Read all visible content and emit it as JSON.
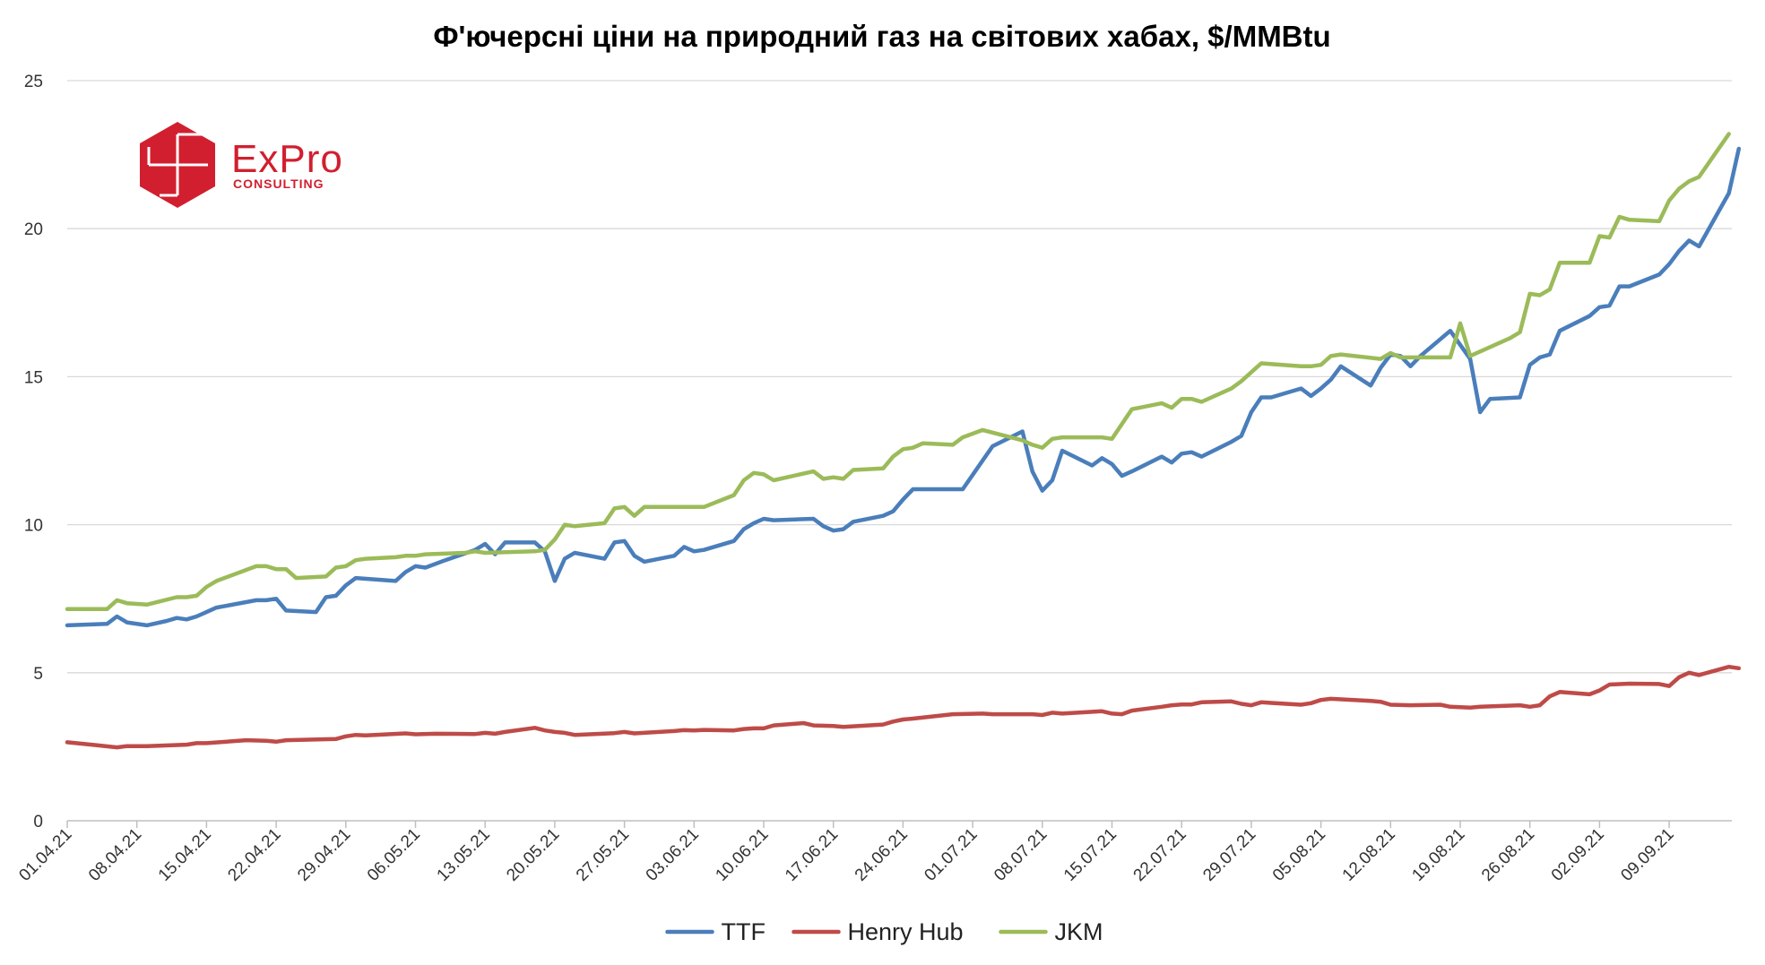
{
  "chart_data": {
    "type": "line",
    "title": "Ф'ючерсні ціни на природний газ на світових хабах, $/MMBtu",
    "ylim": [
      0,
      25
    ],
    "yticks": [
      0,
      5,
      10,
      15,
      20,
      25
    ],
    "x_tick_labels": [
      "01.04.21",
      "08.04.21",
      "15.04.21",
      "22.04.21",
      "29.04.21",
      "06.05.21",
      "13.05.21",
      "20.05.21",
      "27.05.21",
      "03.06.21",
      "10.06.21",
      "17.06.21",
      "24.06.21",
      "01.07.21",
      "08.07.21",
      "15.07.21",
      "22.07.21",
      "29.07.21",
      "05.08.21",
      "12.08.21",
      "19.08.21",
      "26.08.21",
      "02.09.21",
      "09.09.21"
    ],
    "x_tick_days": [
      0,
      7,
      14,
      21,
      28,
      35,
      42,
      49,
      56,
      63,
      70,
      77,
      84,
      91,
      98,
      105,
      112,
      119,
      126,
      133,
      140,
      147,
      154,
      161
    ],
    "grid": "horizontal",
    "legend_position": "bottom",
    "series": [
      {
        "name": "TTF",
        "color": "#4a7ebb",
        "points": [
          [
            0,
            6.6
          ],
          [
            4,
            6.65
          ],
          [
            5,
            6.9
          ],
          [
            6,
            6.7
          ],
          [
            8,
            6.6
          ],
          [
            10,
            6.75
          ],
          [
            11,
            6.85
          ],
          [
            12,
            6.8
          ],
          [
            13,
            6.9
          ],
          [
            14,
            7.05
          ],
          [
            15,
            7.2
          ],
          [
            19,
            7.45
          ],
          [
            20,
            7.45
          ],
          [
            21,
            7.5
          ],
          [
            22,
            7.1
          ],
          [
            25,
            7.05
          ],
          [
            26,
            7.55
          ],
          [
            27,
            7.6
          ],
          [
            28,
            7.95
          ],
          [
            29,
            8.2
          ],
          [
            33,
            8.1
          ],
          [
            34,
            8.4
          ],
          [
            35,
            8.6
          ],
          [
            36,
            8.55
          ],
          [
            38,
            8.8
          ],
          [
            41,
            9.15
          ],
          [
            42,
            9.35
          ],
          [
            43,
            9.0
          ],
          [
            44,
            9.4
          ],
          [
            47,
            9.4
          ],
          [
            48,
            9.1
          ],
          [
            49,
            8.1
          ],
          [
            50,
            8.85
          ],
          [
            51,
            9.05
          ],
          [
            54,
            8.85
          ],
          [
            55,
            9.4
          ],
          [
            56,
            9.45
          ],
          [
            57,
            8.95
          ],
          [
            58,
            8.75
          ],
          [
            61,
            8.95
          ],
          [
            62,
            9.25
          ],
          [
            63,
            9.1
          ],
          [
            64,
            9.15
          ],
          [
            67,
            9.45
          ],
          [
            68,
            9.85
          ],
          [
            69,
            10.05
          ],
          [
            70,
            10.2
          ],
          [
            71,
            10.15
          ],
          [
            75,
            10.2
          ],
          [
            76,
            9.95
          ],
          [
            77,
            9.8
          ],
          [
            78,
            9.85
          ],
          [
            79,
            10.1
          ],
          [
            82,
            10.3
          ],
          [
            83,
            10.45
          ],
          [
            84,
            10.85
          ],
          [
            85,
            11.2
          ],
          [
            90,
            11.2
          ],
          [
            93,
            12.65
          ],
          [
            96,
            13.15
          ],
          [
            97,
            11.8
          ],
          [
            98,
            11.15
          ],
          [
            99,
            11.5
          ],
          [
            100,
            12.5
          ],
          [
            103,
            12.0
          ],
          [
            104,
            12.25
          ],
          [
            105,
            12.05
          ],
          [
            106,
            11.65
          ],
          [
            107,
            11.8
          ],
          [
            110,
            12.3
          ],
          [
            111,
            12.1
          ],
          [
            112,
            12.4
          ],
          [
            113,
            12.45
          ],
          [
            114,
            12.3
          ],
          [
            117,
            12.8
          ],
          [
            118,
            13.0
          ],
          [
            119,
            13.8
          ],
          [
            120,
            14.3
          ],
          [
            121,
            14.3
          ],
          [
            124,
            14.6
          ],
          [
            125,
            14.35
          ],
          [
            126,
            14.6
          ],
          [
            127,
            14.9
          ],
          [
            128,
            15.35
          ],
          [
            131,
            14.7
          ],
          [
            132,
            15.3
          ],
          [
            133,
            15.75
          ],
          [
            134,
            15.7
          ],
          [
            135,
            15.35
          ],
          [
            136,
            15.7
          ],
          [
            139,
            16.55
          ],
          [
            141,
            15.6
          ],
          [
            142,
            13.8
          ],
          [
            143,
            14.25
          ],
          [
            146,
            14.3
          ],
          [
            147,
            15.4
          ],
          [
            148,
            15.65
          ],
          [
            149,
            15.75
          ],
          [
            150,
            16.55
          ],
          [
            153,
            17.05
          ],
          [
            154,
            17.35
          ],
          [
            155,
            17.4
          ],
          [
            156,
            18.05
          ],
          [
            157,
            18.05
          ],
          [
            160,
            18.45
          ],
          [
            161,
            18.8
          ],
          [
            162,
            19.25
          ],
          [
            163,
            19.6
          ],
          [
            164,
            19.4
          ],
          [
            167,
            21.2
          ],
          [
            168,
            22.7
          ]
        ]
      },
      {
        "name": "Henry Hub",
        "color": "#be4b48",
        "points": [
          [
            0,
            2.65
          ],
          [
            3,
            2.55
          ],
          [
            5,
            2.48
          ],
          [
            6,
            2.52
          ],
          [
            8,
            2.52
          ],
          [
            12,
            2.57
          ],
          [
            13,
            2.62
          ],
          [
            14,
            2.62
          ],
          [
            18,
            2.72
          ],
          [
            20,
            2.7
          ],
          [
            21,
            2.67
          ],
          [
            22,
            2.72
          ],
          [
            27,
            2.76
          ],
          [
            28,
            2.85
          ],
          [
            29,
            2.9
          ],
          [
            30,
            2.88
          ],
          [
            34,
            2.95
          ],
          [
            35,
            2.92
          ],
          [
            37,
            2.94
          ],
          [
            41,
            2.93
          ],
          [
            42,
            2.97
          ],
          [
            43,
            2.94
          ],
          [
            44,
            3.0
          ],
          [
            47,
            3.14
          ],
          [
            48,
            3.05
          ],
          [
            49,
            3.0
          ],
          [
            50,
            2.97
          ],
          [
            51,
            2.9
          ],
          [
            55,
            2.96
          ],
          [
            56,
            3.0
          ],
          [
            57,
            2.95
          ],
          [
            61,
            3.03
          ],
          [
            62,
            3.06
          ],
          [
            63,
            3.05
          ],
          [
            64,
            3.07
          ],
          [
            67,
            3.05
          ],
          [
            68,
            3.1
          ],
          [
            69,
            3.12
          ],
          [
            70,
            3.12
          ],
          [
            71,
            3.22
          ],
          [
            74,
            3.3
          ],
          [
            75,
            3.22
          ],
          [
            77,
            3.2
          ],
          [
            78,
            3.17
          ],
          [
            82,
            3.25
          ],
          [
            83,
            3.35
          ],
          [
            84,
            3.42
          ],
          [
            85,
            3.45
          ],
          [
            89,
            3.6
          ],
          [
            92,
            3.62
          ],
          [
            93,
            3.6
          ],
          [
            97,
            3.6
          ],
          [
            98,
            3.57
          ],
          [
            99,
            3.65
          ],
          [
            100,
            3.62
          ],
          [
            104,
            3.7
          ],
          [
            105,
            3.62
          ],
          [
            106,
            3.6
          ],
          [
            107,
            3.72
          ],
          [
            110,
            3.85
          ],
          [
            111,
            3.9
          ],
          [
            112,
            3.93
          ],
          [
            113,
            3.93
          ],
          [
            114,
            4.0
          ],
          [
            117,
            4.03
          ],
          [
            118,
            3.95
          ],
          [
            119,
            3.9
          ],
          [
            120,
            4.0
          ],
          [
            121,
            3.98
          ],
          [
            124,
            3.92
          ],
          [
            125,
            3.97
          ],
          [
            126,
            4.08
          ],
          [
            127,
            4.12
          ],
          [
            131,
            4.05
          ],
          [
            132,
            4.02
          ],
          [
            133,
            3.92
          ],
          [
            135,
            3.9
          ],
          [
            138,
            3.92
          ],
          [
            139,
            3.85
          ],
          [
            141,
            3.82
          ],
          [
            142,
            3.85
          ],
          [
            146,
            3.9
          ],
          [
            147,
            3.85
          ],
          [
            148,
            3.9
          ],
          [
            149,
            4.2
          ],
          [
            150,
            4.35
          ],
          [
            153,
            4.27
          ],
          [
            154,
            4.4
          ],
          [
            155,
            4.6
          ],
          [
            157,
            4.63
          ],
          [
            160,
            4.62
          ],
          [
            161,
            4.55
          ],
          [
            162,
            4.85
          ],
          [
            163,
            5.0
          ],
          [
            164,
            4.92
          ],
          [
            167,
            5.2
          ],
          [
            168,
            5.15
          ]
        ]
      },
      {
        "name": "JKM",
        "color": "#9bbb59",
        "points": [
          [
            0,
            7.15
          ],
          [
            4,
            7.15
          ],
          [
            5,
            7.45
          ],
          [
            6,
            7.35
          ],
          [
            8,
            7.3
          ],
          [
            11,
            7.55
          ],
          [
            12,
            7.55
          ],
          [
            13,
            7.6
          ],
          [
            14,
            7.9
          ],
          [
            15,
            8.1
          ],
          [
            19,
            8.6
          ],
          [
            20,
            8.6
          ],
          [
            21,
            8.5
          ],
          [
            22,
            8.5
          ],
          [
            23,
            8.2
          ],
          [
            26,
            8.25
          ],
          [
            27,
            8.55
          ],
          [
            28,
            8.6
          ],
          [
            29,
            8.8
          ],
          [
            30,
            8.85
          ],
          [
            33,
            8.9
          ],
          [
            34,
            8.95
          ],
          [
            35,
            8.95
          ],
          [
            36,
            9.0
          ],
          [
            40,
            9.05
          ],
          [
            41,
            9.1
          ],
          [
            42,
            9.05
          ],
          [
            47,
            9.1
          ],
          [
            48,
            9.15
          ],
          [
            49,
            9.5
          ],
          [
            50,
            10.0
          ],
          [
            51,
            9.95
          ],
          [
            54,
            10.05
          ],
          [
            55,
            10.55
          ],
          [
            56,
            10.6
          ],
          [
            57,
            10.3
          ],
          [
            58,
            10.6
          ],
          [
            63,
            10.6
          ],
          [
            64,
            10.6
          ],
          [
            67,
            11.0
          ],
          [
            68,
            11.5
          ],
          [
            69,
            11.75
          ],
          [
            70,
            11.7
          ],
          [
            71,
            11.5
          ],
          [
            75,
            11.8
          ],
          [
            76,
            11.55
          ],
          [
            77,
            11.6
          ],
          [
            78,
            11.55
          ],
          [
            79,
            11.85
          ],
          [
            82,
            11.9
          ],
          [
            83,
            12.3
          ],
          [
            84,
            12.55
          ],
          [
            85,
            12.6
          ],
          [
            86,
            12.75
          ],
          [
            89,
            12.7
          ],
          [
            90,
            12.95
          ],
          [
            92,
            13.2
          ],
          [
            96,
            12.85
          ],
          [
            97,
            12.7
          ],
          [
            98,
            12.6
          ],
          [
            99,
            12.9
          ],
          [
            100,
            12.95
          ],
          [
            104,
            12.95
          ],
          [
            105,
            12.9
          ],
          [
            106,
            13.4
          ],
          [
            107,
            13.9
          ],
          [
            110,
            14.1
          ],
          [
            111,
            13.95
          ],
          [
            112,
            14.25
          ],
          [
            113,
            14.25
          ],
          [
            114,
            14.15
          ],
          [
            117,
            14.6
          ],
          [
            118,
            14.85
          ],
          [
            119,
            15.15
          ],
          [
            120,
            15.45
          ],
          [
            124,
            15.35
          ],
          [
            125,
            15.35
          ],
          [
            126,
            15.4
          ],
          [
            127,
            15.7
          ],
          [
            128,
            15.75
          ],
          [
            132,
            15.6
          ],
          [
            133,
            15.8
          ],
          [
            134,
            15.65
          ],
          [
            139,
            15.65
          ],
          [
            140,
            16.8
          ],
          [
            141,
            15.7
          ],
          [
            145,
            16.3
          ],
          [
            146,
            16.5
          ],
          [
            147,
            17.8
          ],
          [
            148,
            17.75
          ],
          [
            149,
            17.95
          ],
          [
            150,
            18.85
          ],
          [
            152,
            18.85
          ],
          [
            153,
            18.85
          ],
          [
            154,
            19.75
          ],
          [
            155,
            19.7
          ],
          [
            156,
            20.4
          ],
          [
            157,
            20.3
          ],
          [
            160,
            20.25
          ],
          [
            161,
            20.95
          ],
          [
            162,
            21.35
          ],
          [
            163,
            21.6
          ],
          [
            164,
            21.75
          ],
          [
            167,
            23.2
          ]
        ]
      }
    ]
  },
  "logo": {
    "name": "ExPro",
    "subtitle": "CONSULTING",
    "color": "#d11f2f"
  }
}
